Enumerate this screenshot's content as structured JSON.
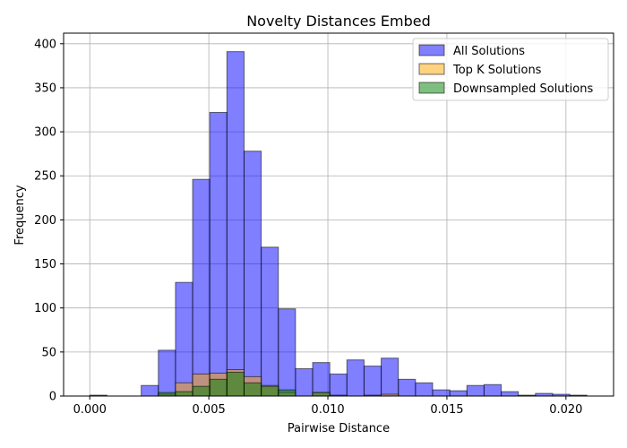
{
  "chart_data": {
    "type": "histogram",
    "title": "Novelty Distances Embed",
    "xlabel": "Pairwise Distance",
    "ylabel": "Frequency",
    "xlim": [
      -0.0011,
      0.022
    ],
    "ylim": [
      0,
      412
    ],
    "xticks": [
      0.0,
      0.005,
      0.01,
      0.015,
      0.02
    ],
    "xtick_labels": [
      "0.000",
      "0.005",
      "0.010",
      "0.015",
      "0.020"
    ],
    "yticks": [
      0,
      50,
      100,
      150,
      200,
      250,
      300,
      350,
      400
    ],
    "ytick_labels": [
      "0",
      "50",
      "100",
      "150",
      "200",
      "250",
      "300",
      "350",
      "400"
    ],
    "grid": true,
    "legend_position": "top-right",
    "bin_edges": [
      0.0,
      0.00072,
      0.00144,
      0.00216,
      0.00288,
      0.0036,
      0.00432,
      0.00504,
      0.00576,
      0.00648,
      0.0072,
      0.00792,
      0.00864,
      0.00936,
      0.01008,
      0.0108,
      0.01152,
      0.01224,
      0.01296,
      0.01368,
      0.0144,
      0.01512,
      0.01584,
      0.01656,
      0.01728,
      0.018,
      0.01872,
      0.01944,
      0.02016,
      0.02088
    ],
    "series": [
      {
        "name": "All Solutions",
        "color": "#0000ff",
        "opacity": 0.5,
        "values": [
          1,
          0,
          0,
          12,
          52,
          129,
          246,
          322,
          391,
          278,
          169,
          99,
          31,
          38,
          25,
          41,
          34,
          43,
          19,
          15,
          7,
          6,
          12,
          13,
          5,
          1,
          3,
          2,
          1
        ]
      },
      {
        "name": "Top K Solutions",
        "color": "#ffa500",
        "opacity": 0.5,
        "values": [
          0,
          0,
          0,
          0,
          2,
          15,
          25,
          26,
          30,
          22,
          12,
          4,
          0,
          4,
          1,
          0,
          1,
          2,
          0,
          0,
          0,
          0,
          0,
          0,
          0,
          0,
          0,
          0,
          0
        ]
      },
      {
        "name": "Downsampled Solutions",
        "color": "#008000",
        "opacity": 0.5,
        "values": [
          0,
          0,
          0,
          0,
          4,
          5,
          11,
          19,
          27,
          15,
          11,
          7,
          0,
          4,
          0,
          0,
          0,
          0,
          0,
          0,
          0,
          0,
          0,
          0,
          0,
          0,
          0,
          0,
          0
        ]
      }
    ]
  }
}
